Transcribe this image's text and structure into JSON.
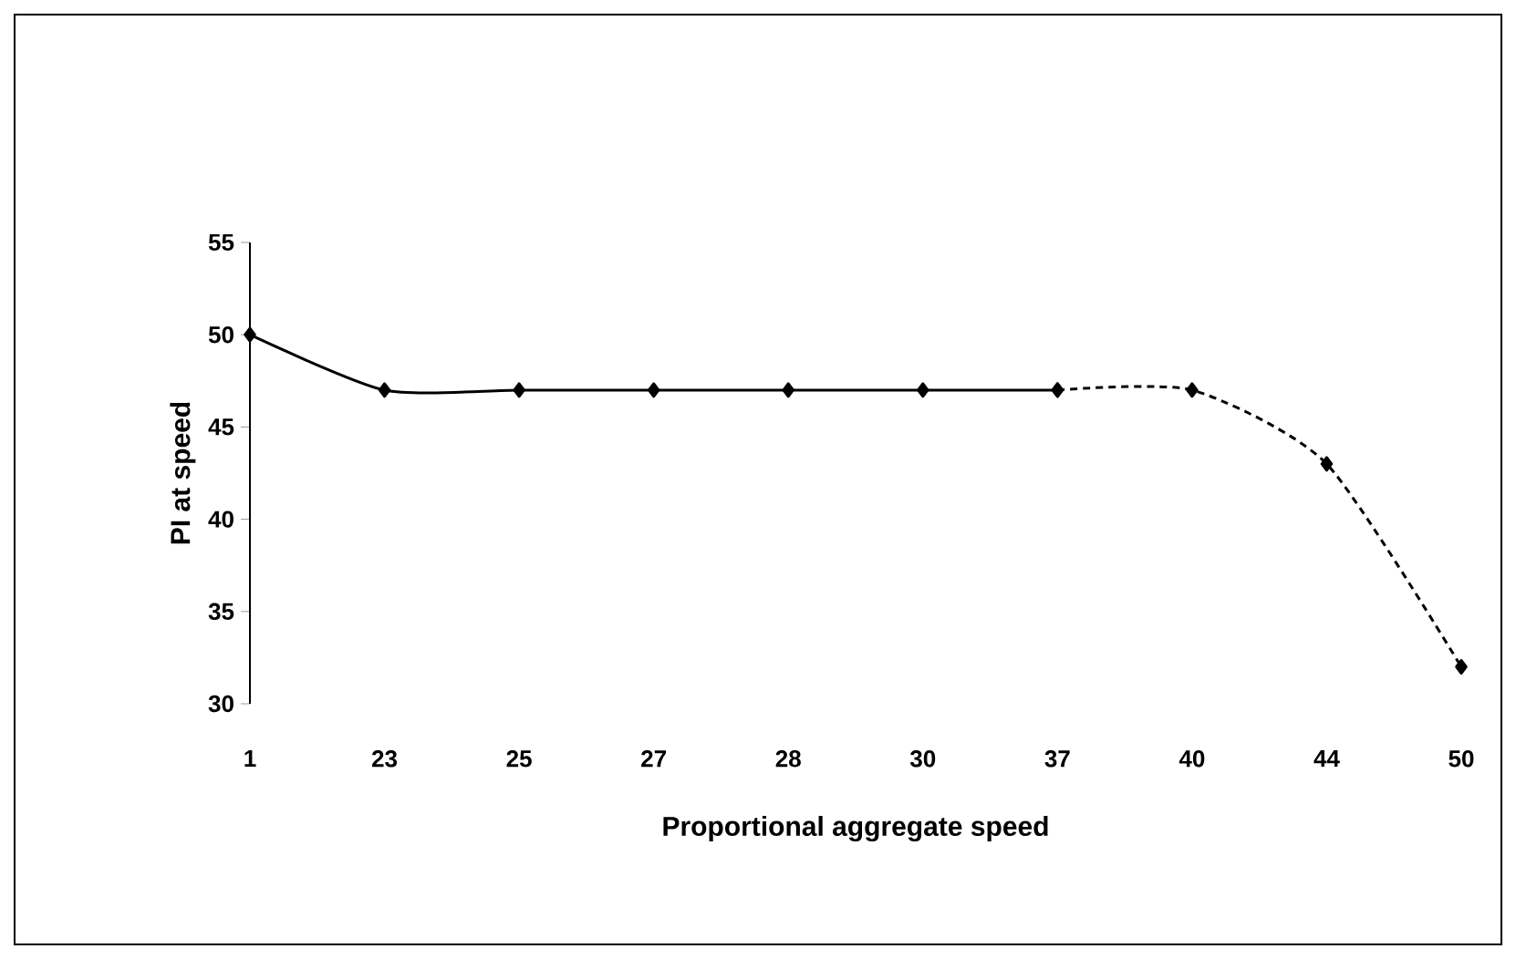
{
  "chart_data": {
    "type": "line",
    "xlabel": "Proportional aggregate speed",
    "ylabel": "PI at speed",
    "categories": [
      "1",
      "23",
      "25",
      "27",
      "28",
      "30",
      "37",
      "40",
      "44",
      "50"
    ],
    "series": [
      {
        "color": "#000000",
        "line_style": "solid",
        "values": [
          50,
          47,
          47,
          47,
          47,
          47,
          47,
          null,
          null,
          null
        ]
      },
      {
        "color": "#000000",
        "line_style": "dashed",
        "values": [
          null,
          null,
          null,
          null,
          null,
          null,
          47,
          47,
          43,
          32
        ]
      }
    ],
    "ylim": [
      30,
      55
    ],
    "yticks": [
      30,
      35,
      40,
      45,
      50,
      55
    ],
    "marker": "diamond"
  }
}
